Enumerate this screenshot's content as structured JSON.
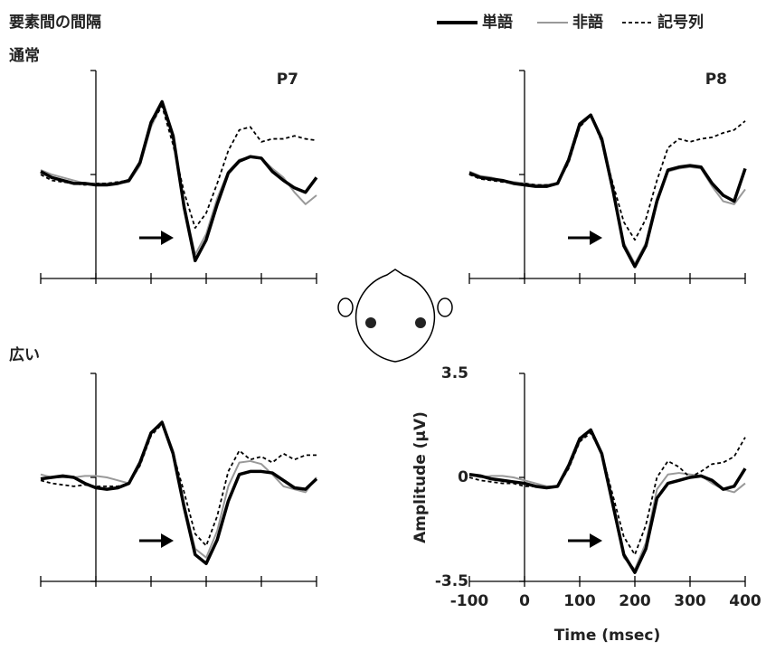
{
  "title": "要素間の間隔",
  "chart_data": [
    {
      "type": "line",
      "condition": "通常",
      "electrode": "P7",
      "x": [
        -100,
        -80,
        -60,
        -40,
        -20,
        0,
        20,
        40,
        60,
        80,
        100,
        120,
        140,
        160,
        180,
        200,
        220,
        240,
        260,
        280,
        300,
        320,
        340,
        360,
        380,
        400
      ],
      "xlim": [
        -100,
        400
      ],
      "xticks": [
        -100,
        0,
        100,
        200,
        300,
        400
      ],
      "ylim": [
        -3.5,
        3.5
      ],
      "yticks": [
        -3.5,
        0,
        3.5
      ],
      "series": [
        {
          "name": "単語",
          "color": "#000000",
          "values": [
            0.1,
            -0.1,
            -0.2,
            -0.3,
            -0.3,
            -0.35,
            -0.35,
            -0.3,
            -0.2,
            0.4,
            1.75,
            2.45,
            1.3,
            -1.1,
            -2.9,
            -2.2,
            -1.0,
            0.05,
            0.45,
            0.6,
            0.55,
            0.1,
            -0.2,
            -0.45,
            -0.6,
            -0.1
          ]
        },
        {
          "name": "非語",
          "color": "#999999",
          "values": [
            0.15,
            0.0,
            -0.1,
            -0.2,
            -0.3,
            -0.3,
            -0.3,
            -0.3,
            -0.25,
            0.3,
            1.6,
            2.4,
            1.2,
            -1.0,
            -2.7,
            -2.0,
            -0.8,
            0.1,
            0.5,
            0.6,
            0.55,
            0.2,
            -0.1,
            -0.6,
            -1.0,
            -0.7
          ]
        },
        {
          "name": "記号列",
          "color": "#000000",
          "values": [
            0.0,
            -0.2,
            -0.25,
            -0.3,
            -0.35,
            -0.3,
            -0.3,
            -0.25,
            -0.2,
            0.4,
            1.7,
            2.3,
            1.0,
            -0.6,
            -1.8,
            -1.3,
            -0.3,
            0.8,
            1.5,
            1.6,
            1.1,
            1.2,
            1.2,
            1.3,
            1.2,
            1.15
          ]
        }
      ]
    },
    {
      "type": "line",
      "electrode": "P8",
      "x": [
        -100,
        -80,
        -60,
        -40,
        -20,
        0,
        20,
        40,
        60,
        80,
        100,
        120,
        140,
        160,
        180,
        200,
        220,
        240,
        260,
        280,
        300,
        320,
        340,
        360,
        380,
        400
      ],
      "xlim": [
        -100,
        400
      ],
      "xticks": [
        -100,
        0,
        100,
        200,
        300,
        400
      ],
      "ylim": [
        -3.5,
        3.5
      ],
      "yticks": [
        -3.5,
        0,
        3.5
      ],
      "series": [
        {
          "name": "単語",
          "color": "#000000",
          "values": [
            0.05,
            -0.1,
            -0.15,
            -0.2,
            -0.3,
            -0.35,
            -0.4,
            -0.4,
            -0.3,
            0.5,
            1.7,
            2.0,
            1.2,
            -0.5,
            -2.4,
            -3.1,
            -2.4,
            -0.9,
            0.15,
            0.25,
            0.3,
            0.25,
            -0.3,
            -0.7,
            -0.9,
            0.2
          ]
        },
        {
          "name": "非語",
          "color": "#999999",
          "values": [
            0.1,
            -0.05,
            -0.1,
            -0.2,
            -0.25,
            -0.3,
            -0.35,
            -0.35,
            -0.3,
            0.4,
            1.6,
            2.0,
            1.1,
            -0.6,
            -2.3,
            -3.0,
            -2.3,
            -0.8,
            0.1,
            0.2,
            0.25,
            0.2,
            -0.4,
            -0.9,
            -1.0,
            -0.5
          ]
        },
        {
          "name": "記号列",
          "color": "#000000",
          "values": [
            0.0,
            -0.15,
            -0.2,
            -0.25,
            -0.3,
            -0.3,
            -0.35,
            -0.35,
            -0.3,
            0.4,
            1.6,
            2.0,
            1.1,
            -0.3,
            -1.6,
            -2.2,
            -1.5,
            -0.2,
            0.9,
            1.2,
            1.1,
            1.2,
            1.25,
            1.4,
            1.5,
            1.8
          ]
        }
      ]
    },
    {
      "type": "line",
      "condition": "広い",
      "x": [
        -100,
        -80,
        -60,
        -40,
        -20,
        0,
        20,
        40,
        60,
        80,
        100,
        120,
        140,
        160,
        180,
        200,
        220,
        240,
        260,
        280,
        300,
        320,
        340,
        360,
        380,
        400
      ],
      "xlim": [
        -100,
        400
      ],
      "xticks": [
        -100,
        0,
        100,
        200,
        300,
        400
      ],
      "ylim": [
        -3.5,
        3.5
      ],
      "yticks": [
        -3.5,
        0,
        3.5
      ],
      "series": [
        {
          "name": "単語",
          "color": "#000000",
          "values": [
            -0.05,
            0.0,
            0.05,
            0.0,
            -0.2,
            -0.35,
            -0.4,
            -0.35,
            -0.2,
            0.5,
            1.5,
            1.85,
            0.8,
            -1.0,
            -2.6,
            -2.9,
            -2.1,
            -0.8,
            0.1,
            0.2,
            0.2,
            0.15,
            -0.1,
            -0.35,
            -0.4,
            -0.05
          ]
        },
        {
          "name": "非語",
          "color": "#999999",
          "values": [
            0.1,
            0.0,
            0.0,
            0.0,
            0.05,
            0.05,
            0.0,
            -0.1,
            -0.2,
            0.4,
            1.5,
            1.9,
            0.9,
            -0.9,
            -2.4,
            -2.7,
            -1.8,
            -0.3,
            0.5,
            0.55,
            0.45,
            0.1,
            -0.3,
            -0.4,
            -0.5,
            0.0
          ]
        },
        {
          "name": "記号列",
          "color": "#000000",
          "values": [
            -0.1,
            -0.2,
            -0.25,
            -0.3,
            -0.25,
            -0.3,
            -0.3,
            -0.3,
            -0.2,
            0.4,
            1.4,
            1.8,
            0.8,
            -0.5,
            -1.9,
            -2.3,
            -1.3,
            0.2,
            0.9,
            0.6,
            0.7,
            0.5,
            0.8,
            0.6,
            0.75,
            0.75
          ]
        }
      ]
    },
    {
      "type": "line",
      "xlabel": "Time (msec)",
      "ylabel": "Amplitude (μV)",
      "x": [
        -100,
        -80,
        -60,
        -40,
        -20,
        0,
        20,
        40,
        60,
        80,
        100,
        120,
        140,
        160,
        180,
        200,
        220,
        240,
        260,
        280,
        300,
        320,
        340,
        360,
        380,
        400
      ],
      "xlim": [
        -100,
        400
      ],
      "xticks": [
        -100,
        0,
        100,
        200,
        300,
        400
      ],
      "ylim": [
        -3.5,
        3.5
      ],
      "yticks": [
        -3.5,
        0,
        3.5
      ],
      "series": [
        {
          "name": "単語",
          "color": "#000000",
          "values": [
            0.1,
            0.05,
            -0.05,
            -0.1,
            -0.15,
            -0.2,
            -0.3,
            -0.35,
            -0.3,
            0.4,
            1.3,
            1.6,
            0.8,
            -0.9,
            -2.6,
            -3.2,
            -2.4,
            -0.7,
            -0.2,
            -0.1,
            0.0,
            0.05,
            -0.1,
            -0.4,
            -0.3,
            0.3
          ]
        },
        {
          "name": "非語",
          "color": "#999999",
          "values": [
            0.1,
            0.0,
            0.05,
            0.05,
            0.0,
            -0.1,
            -0.2,
            -0.3,
            -0.3,
            0.3,
            1.2,
            1.6,
            0.8,
            -1.0,
            -2.7,
            -3.1,
            -2.2,
            -0.4,
            0.1,
            0.15,
            0.1,
            0.05,
            -0.2,
            -0.4,
            -0.5,
            -0.2
          ]
        },
        {
          "name": "記号列",
          "color": "#000000",
          "values": [
            0.0,
            -0.1,
            -0.15,
            -0.2,
            -0.2,
            -0.3,
            -0.3,
            -0.35,
            -0.3,
            0.3,
            1.2,
            1.5,
            0.8,
            -0.6,
            -2.0,
            -2.6,
            -1.6,
            0.0,
            0.55,
            0.35,
            0.0,
            0.2,
            0.45,
            0.5,
            0.7,
            1.35
          ]
        }
      ]
    }
  ]
}
